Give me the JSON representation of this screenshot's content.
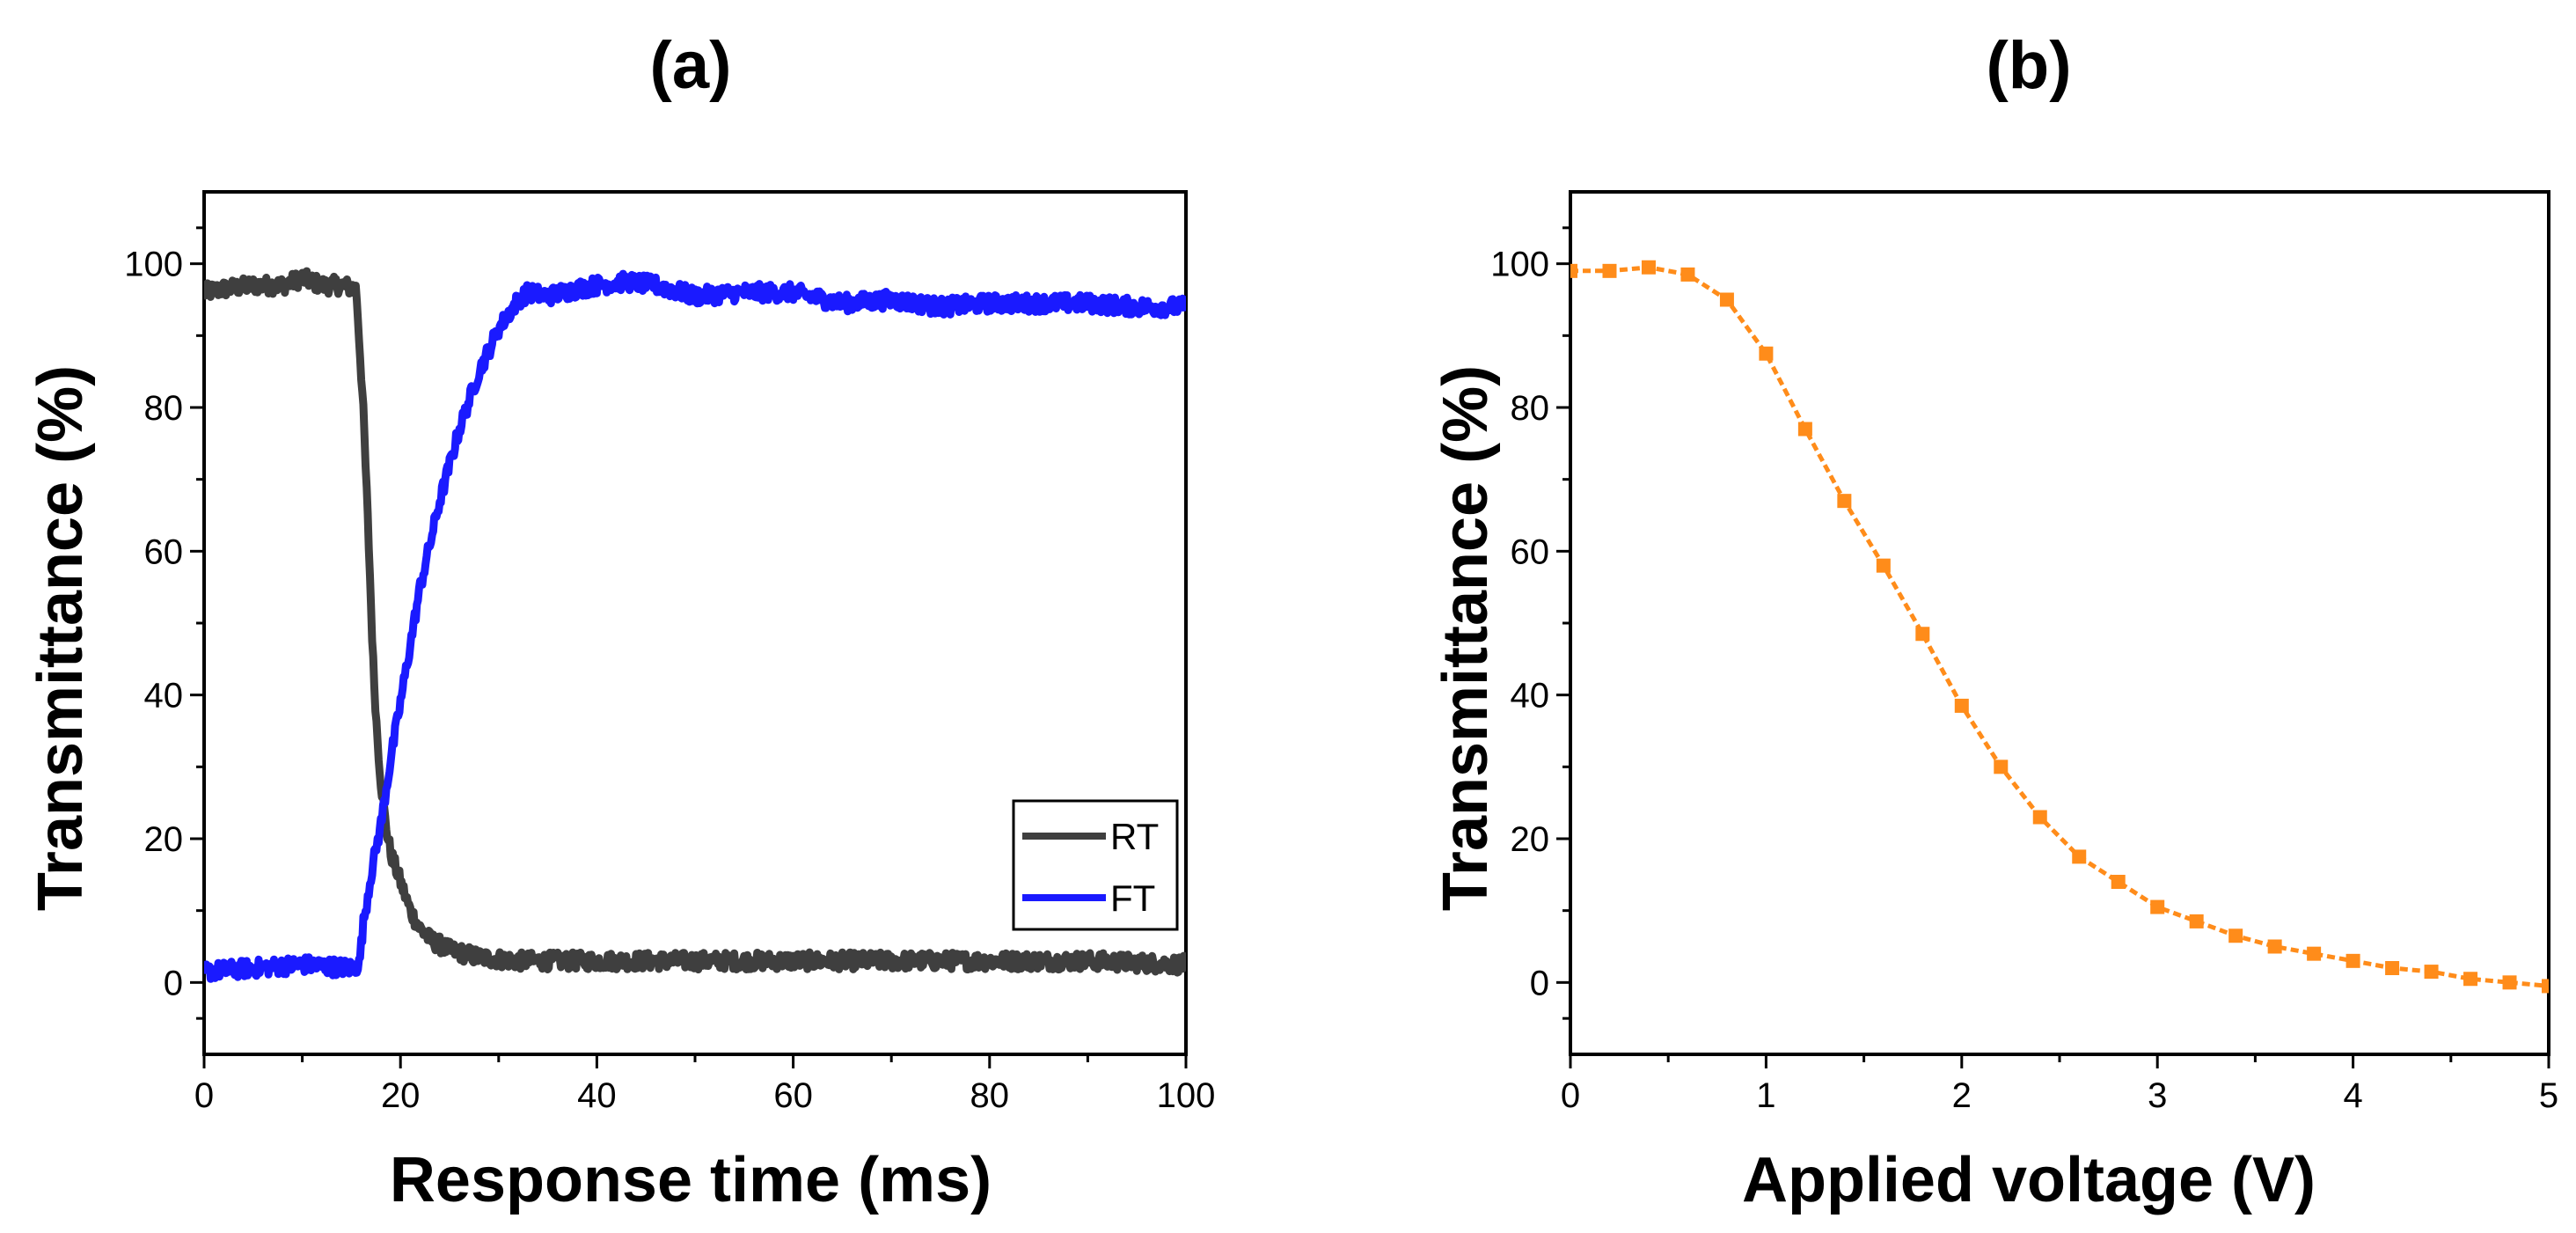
{
  "figure": {
    "panel_a_label": "(a)",
    "panel_b_label": "(b)"
  },
  "chart_data": [
    {
      "type": "line",
      "panel": "(a)",
      "xlabel": "Response time (ms)",
      "ylabel": "Transmittance (%)",
      "xlim": [
        0,
        100
      ],
      "ylim": [
        -10,
        110
      ],
      "xticks": [
        0,
        20,
        40,
        60,
        80,
        100
      ],
      "yticks": [
        0,
        20,
        40,
        60,
        80,
        100
      ],
      "legend_position": "lower-right",
      "series": [
        {
          "name": "RT",
          "color": "#3f3f3f",
          "noise": 1.2,
          "x": [
            0,
            2,
            5,
            8,
            10,
            12,
            14,
            15.5,
            16.2,
            16.8,
            17.2,
            17.6,
            18,
            18.5,
            19,
            20,
            21,
            22,
            23,
            25,
            28,
            32,
            40,
            50,
            60,
            70,
            80,
            90,
            100
          ],
          "y": [
            96,
            96.5,
            97,
            97,
            98,
            97,
            97,
            96.5,
            80,
            60,
            45,
            35,
            28,
            22,
            18,
            14,
            10,
            7.5,
            6,
            4.5,
            3.5,
            3,
            3,
            3,
            3,
            3,
            3,
            3,
            2.5
          ]
        },
        {
          "name": "FT",
          "color": "#1a1aff",
          "noise": 1.2,
          "x": [
            0,
            5,
            10,
            15,
            15.8,
            16.2,
            17,
            18,
            19,
            20,
            21,
            22,
            23,
            24,
            25,
            26,
            27,
            28,
            29,
            30,
            31,
            32,
            33,
            35,
            38,
            40,
            43,
            46,
            50,
            55,
            60,
            65,
            70,
            75,
            80,
            85,
            90,
            95,
            100
          ],
          "y": [
            1.5,
            2,
            2.5,
            2,
            2.5,
            8,
            15,
            22,
            31,
            39,
            47,
            55,
            61,
            67,
            72,
            77,
            81,
            85,
            88,
            91,
            93,
            95,
            96,
            95.5,
            96.5,
            97,
            97.5,
            97,
            95.5,
            96,
            96,
            94.5,
            95,
            94,
            94.5,
            94.5,
            94.5,
            94,
            94
          ]
        }
      ]
    },
    {
      "type": "line",
      "panel": "(b)",
      "xlabel": "Applied voltage (V)",
      "ylabel": "Transmittance (%)",
      "xlim": [
        0,
        5
      ],
      "ylim": [
        -10,
        110
      ],
      "xticks": [
        0,
        1,
        2,
        3,
        4,
        5
      ],
      "yticks": [
        0,
        20,
        40,
        60,
        80,
        100
      ],
      "series": [
        {
          "name": "Transmittance",
          "color": "#ff8c1a",
          "marker": "square",
          "line_style": "dashed",
          "x": [
            0,
            0.2,
            0.4,
            0.6,
            0.8,
            1.0,
            1.2,
            1.4,
            1.6,
            1.8,
            2.0,
            2.2,
            2.4,
            2.6,
            2.8,
            3.0,
            3.2,
            3.4,
            3.6,
            3.8,
            4.0,
            4.2,
            4.4,
            4.6,
            4.8,
            5.0
          ],
          "y": [
            99,
            99,
            99.5,
            98.5,
            95,
            87.5,
            77,
            67,
            58,
            48.5,
            38.5,
            30,
            23,
            17.5,
            14,
            10.5,
            8.5,
            6.5,
            5,
            4,
            3,
            2,
            1.5,
            0.5,
            0,
            -0.5
          ]
        }
      ]
    }
  ]
}
